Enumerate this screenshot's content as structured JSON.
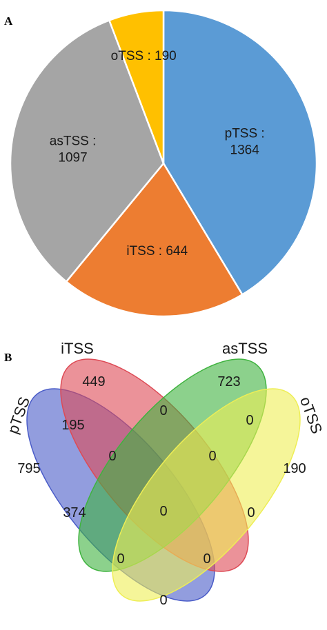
{
  "panels": {
    "a": "A",
    "b": "B"
  },
  "chart_data": [
    {
      "type": "pie",
      "slices": [
        {
          "name": "pTSS",
          "value": 1364,
          "label_lines": [
            "pTSS :",
            "1364"
          ],
          "color": "#5b9bd5"
        },
        {
          "name": "iTSS",
          "value": 644,
          "label_lines": [
            "iTSS : 644"
          ],
          "color": "#ed7d31"
        },
        {
          "name": "asTSS",
          "value": 1097,
          "label_lines": [
            "asTSS :",
            "1097"
          ],
          "color": "#a5a5a5"
        },
        {
          "name": "oTSS",
          "value": 190,
          "label_lines": [
            "oTSS : 190"
          ],
          "color": "#ffc000"
        }
      ]
    },
    {
      "type": "venn",
      "sets": [
        {
          "name": "pTSS",
          "color": "#4a5cc8"
        },
        {
          "name": "iTSS",
          "color": "#dd4a55"
        },
        {
          "name": "asTSS",
          "color": "#3fb33f"
        },
        {
          "name": "oTSS",
          "color": "#eeee55"
        }
      ],
      "regions": [
        {
          "sets": [
            "pTSS"
          ],
          "value": 795
        },
        {
          "sets": [
            "iTSS"
          ],
          "value": 449
        },
        {
          "sets": [
            "asTSS"
          ],
          "value": 723
        },
        {
          "sets": [
            "oTSS"
          ],
          "value": 190
        },
        {
          "sets": [
            "pTSS",
            "iTSS"
          ],
          "value": 195
        },
        {
          "sets": [
            "iTSS",
            "asTSS"
          ],
          "value": 0
        },
        {
          "sets": [
            "asTSS",
            "oTSS"
          ],
          "value": 0
        },
        {
          "sets": [
            "pTSS",
            "asTSS"
          ],
          "value": 374
        },
        {
          "sets": [
            "iTSS",
            "oTSS"
          ],
          "value": 0
        },
        {
          "sets": [
            "pTSS",
            "oTSS"
          ],
          "value": 0
        },
        {
          "sets": [
            "pTSS",
            "iTSS",
            "asTSS"
          ],
          "value": 0
        },
        {
          "sets": [
            "iTSS",
            "asTSS",
            "oTSS"
          ],
          "value": 0
        },
        {
          "sets": [
            "pTSS",
            "iTSS",
            "oTSS"
          ],
          "value": 0
        },
        {
          "sets": [
            "pTSS",
            "asTSS",
            "oTSS"
          ],
          "value": 0
        },
        {
          "sets": [
            "pTSS",
            "iTSS",
            "asTSS",
            "oTSS"
          ],
          "value": 0
        }
      ]
    }
  ]
}
